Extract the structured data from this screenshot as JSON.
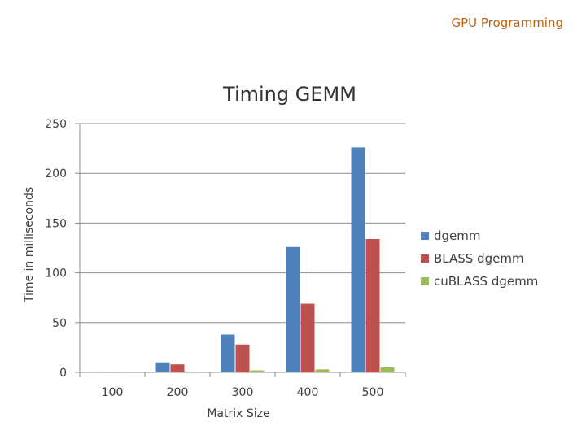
{
  "header": {
    "text": "GPU Programming"
  },
  "chart_data": {
    "type": "bar",
    "title": "Timing GEMM",
    "xlabel": "Matrix Size",
    "ylabel": "Time in milliseconds",
    "categories": [
      "100",
      "200",
      "300",
      "400",
      "500"
    ],
    "ylim": [
      0,
      250
    ],
    "yticks": [
      "0",
      "50",
      "100",
      "150",
      "200",
      "250"
    ],
    "grid": true,
    "legend_position": "right",
    "series": [
      {
        "name": "dgemm",
        "color": "#4f81bd",
        "values": [
          0.5,
          10,
          38,
          126,
          226
        ]
      },
      {
        "name": "BLASS dgemm",
        "color": "#c0504d",
        "values": [
          0.3,
          8,
          28,
          69,
          134
        ]
      },
      {
        "name": "cuBLASS dgemm",
        "color": "#9bbb59",
        "values": [
          0.1,
          0.3,
          2,
          3,
          5
        ]
      }
    ]
  }
}
